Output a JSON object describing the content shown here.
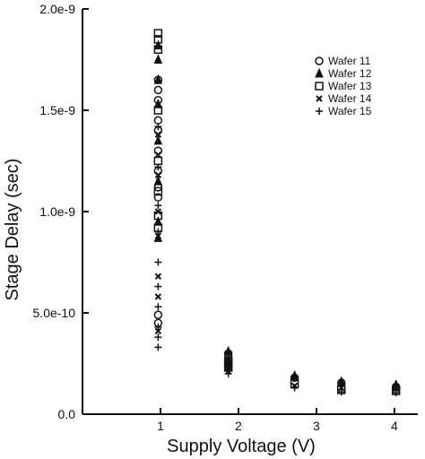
{
  "chart_data": {
    "type": "scatter",
    "title": "",
    "xlabel": "Supply Voltage (V)",
    "ylabel": "Stage Delay (sec)",
    "xlim": [
      0,
      4.3
    ],
    "ylim": [
      0,
      2e-09
    ],
    "grid": false,
    "legend_position": "top-right",
    "x_ticks": [
      {
        "value": 1,
        "label": "1"
      },
      {
        "value": 2,
        "label": "2"
      },
      {
        "value": 3,
        "label": "3"
      },
      {
        "value": 4,
        "label": "4"
      }
    ],
    "y_ticks": [
      {
        "value": 0,
        "label": "0.0"
      },
      {
        "value": 5e-10,
        "label": "5.0e-10"
      },
      {
        "value": 1e-09,
        "label": "1.0e-9"
      },
      {
        "value": 1.5e-09,
        "label": "1.5e-9"
      },
      {
        "value": 2e-09,
        "label": "2.0e-9"
      }
    ],
    "series": [
      {
        "name": "Wafer 11",
        "marker": "circle",
        "points": [
          [
            0.97,
            1.65e-09
          ],
          [
            0.97,
            1.6e-09
          ],
          [
            0.97,
            1.55e-09
          ],
          [
            0.97,
            1.45e-09
          ],
          [
            0.97,
            1.4e-09
          ],
          [
            0.97,
            1.3e-09
          ],
          [
            0.97,
            1.2e-09
          ],
          [
            0.97,
            1.12e-09
          ],
          [
            0.97,
            1.07e-09
          ],
          [
            0.97,
            4.9e-10
          ],
          [
            0.97,
            4.5e-10
          ],
          [
            1.87,
            3e-10
          ],
          [
            1.87,
            2.8e-10
          ],
          [
            2.72,
            1.8e-10
          ],
          [
            3.32,
            1.55e-10
          ],
          [
            4.02,
            1.35e-10
          ]
        ]
      },
      {
        "name": "Wafer 12",
        "marker": "triangle",
        "points": [
          [
            0.97,
            1.82e-09
          ],
          [
            0.97,
            1.75e-09
          ],
          [
            0.97,
            1.65e-09
          ],
          [
            0.97,
            1.53e-09
          ],
          [
            0.97,
            1.35e-09
          ],
          [
            0.97,
            1.15e-09
          ],
          [
            0.97,
            9.5e-10
          ],
          [
            0.97,
            8.7e-10
          ],
          [
            1.87,
            3.1e-10
          ],
          [
            1.87,
            2.7e-10
          ],
          [
            1.87,
            2.4e-10
          ],
          [
            2.72,
            1.9e-10
          ],
          [
            3.32,
            1.6e-10
          ],
          [
            4.02,
            1.45e-10
          ]
        ]
      },
      {
        "name": "Wafer 13",
        "marker": "square",
        "points": [
          [
            0.97,
            1.88e-09
          ],
          [
            0.97,
            1.85e-09
          ],
          [
            0.97,
            1.8e-09
          ],
          [
            0.97,
            1.5e-09
          ],
          [
            0.97,
            1.25e-09
          ],
          [
            0.97,
            1.1e-09
          ],
          [
            0.97,
            9.8e-10
          ],
          [
            0.97,
            9.2e-10
          ],
          [
            1.87,
            2.6e-10
          ],
          [
            1.87,
            2.3e-10
          ],
          [
            2.72,
            1.5e-10
          ],
          [
            3.32,
            1.2e-10
          ],
          [
            4.02,
            1.15e-10
          ]
        ]
      },
      {
        "name": "Wafer 14",
        "marker": "x",
        "points": [
          [
            0.97,
            1.38e-09
          ],
          [
            0.97,
            1.28e-09
          ],
          [
            0.97,
            1.18e-09
          ],
          [
            0.97,
            1e-09
          ],
          [
            0.97,
            8.8e-10
          ],
          [
            0.97,
            6.8e-10
          ],
          [
            0.97,
            5.8e-10
          ],
          [
            0.97,
            4.1e-10
          ],
          [
            1.87,
            2.5e-10
          ],
          [
            1.87,
            2.1e-10
          ],
          [
            2.72,
            1.4e-10
          ],
          [
            3.32,
            1.3e-10
          ],
          [
            4.02,
            1.25e-10
          ]
        ]
      },
      {
        "name": "Wafer 15",
        "marker": "plus",
        "points": [
          [
            0.97,
            1.42e-09
          ],
          [
            0.97,
            1.22e-09
          ],
          [
            0.97,
            1.03e-09
          ],
          [
            0.97,
            9e-10
          ],
          [
            0.97,
            7.5e-10
          ],
          [
            0.97,
            6.3e-10
          ],
          [
            0.97,
            5.3e-10
          ],
          [
            0.97,
            4.3e-10
          ],
          [
            0.97,
            3.8e-10
          ],
          [
            0.97,
            3.3e-10
          ],
          [
            1.87,
            2e-10
          ],
          [
            1.87,
            2.2e-10
          ],
          [
            2.72,
            1.3e-10
          ],
          [
            3.32,
            1.1e-10
          ],
          [
            4.02,
            1.05e-10
          ]
        ]
      }
    ]
  }
}
